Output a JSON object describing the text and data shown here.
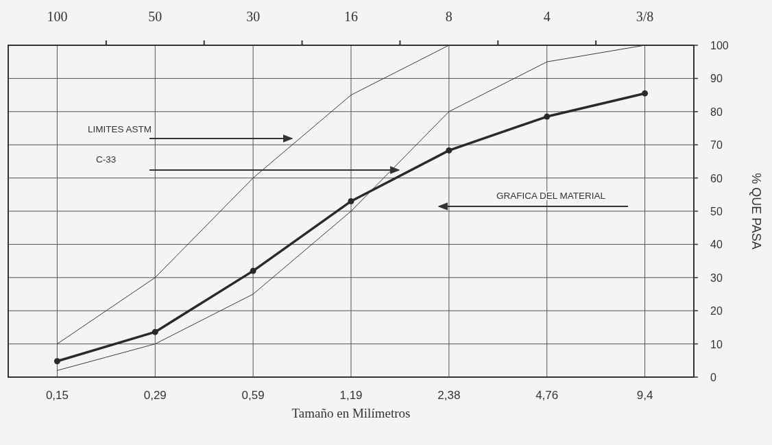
{
  "chart_data": {
    "type": "line",
    "xlabel": "Tamaño en Milímetros",
    "ylabel": "% QUE PASA",
    "categories": [
      "0,15",
      "0,29",
      "0,59",
      "1,19",
      "2,38",
      "4,76",
      "9,4"
    ],
    "ylim": [
      0,
      100
    ],
    "yticks": [
      0,
      10,
      20,
      30,
      40,
      50,
      60,
      70,
      80,
      90,
      100
    ],
    "grid": true,
    "series": [
      {
        "color": "#3a3a3a",
        "values": [
          10,
          30,
          60,
          85,
          100,
          null,
          null
        ],
        "marker": "none"
      },
      {
        "color": "#3a3a3a",
        "values": [
          2,
          10,
          25,
          50,
          80,
          95,
          100
        ],
        "marker": "none"
      },
      {
        "color": "#2a2a2a",
        "values": [
          4.8,
          13.6,
          32,
          53,
          68.3,
          78.5,
          85.5
        ],
        "marker": "circle"
      }
    ],
    "annotations": [
      "LIMITES ASTM",
      "C-33",
      "GRAFICA DEL MATERIAL",
      "100",
      "50",
      "30",
      "16",
      "8",
      "4",
      "3/8"
    ]
  }
}
